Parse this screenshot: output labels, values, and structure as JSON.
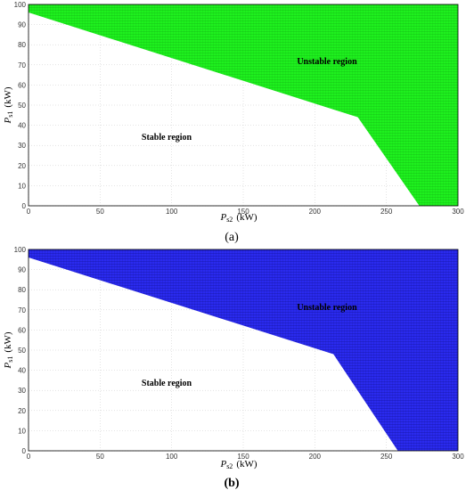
{
  "chart_data": [
    {
      "type": "area",
      "panel_label": "(a)",
      "fill_color": "#1EF01E",
      "xlabel": {
        "main": "P",
        "sub": "s2",
        "unit": "(kW)"
      },
      "ylabel": {
        "main": "P",
        "sub": "s1",
        "unit": "(kW)"
      },
      "xlim": [
        0,
        300
      ],
      "ylim": [
        0,
        100
      ],
      "xticks": [
        0,
        50,
        100,
        150,
        200,
        250,
        300
      ],
      "yticks": [
        0,
        10,
        20,
        30,
        40,
        50,
        60,
        70,
        80,
        90,
        100
      ],
      "grid": true,
      "boundary": {
        "x": [
          0,
          230,
          273
        ],
        "y": [
          96,
          44,
          0
        ]
      },
      "annotations": [
        {
          "text": "Unstable region",
          "x": 228,
          "y": 72
        },
        {
          "text": "Stable region",
          "x": 90,
          "y": 33
        }
      ]
    },
    {
      "type": "area",
      "panel_label": "(b)",
      "fill_color": "#2020E8",
      "xlabel": {
        "main": "P",
        "sub": "s2",
        "unit": "(kW)"
      },
      "ylabel": {
        "main": "P",
        "sub": "s1",
        "unit": "(kW)"
      },
      "xlim": [
        0,
        300
      ],
      "ylim": [
        0,
        100
      ],
      "xticks": [
        0,
        50,
        100,
        150,
        200,
        250,
        300
      ],
      "yticks": [
        0,
        10,
        20,
        30,
        40,
        50,
        60,
        70,
        80,
        90,
        100
      ],
      "grid": true,
      "boundary": {
        "x": [
          0,
          213,
          258
        ],
        "y": [
          96,
          48,
          0
        ]
      },
      "annotations": [
        {
          "text": "Unstable region",
          "x": 228,
          "y": 71
        },
        {
          "text": "Stable region",
          "x": 88,
          "y": 33
        }
      ]
    }
  ]
}
